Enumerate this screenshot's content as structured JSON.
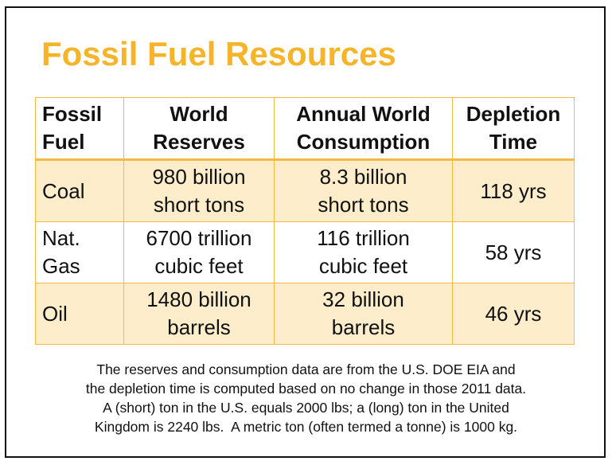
{
  "title": "Fossil Fuel Resources",
  "table": {
    "headers": [
      [
        "Fossil",
        "Fuel"
      ],
      [
        "World",
        "Reserves"
      ],
      [
        "Annual World",
        "Consumption"
      ],
      [
        "Depletion",
        "Time"
      ]
    ],
    "rows": [
      {
        "fuel": [
          "Coal"
        ],
        "reserves": [
          "980 billion",
          "short tons"
        ],
        "consumption": [
          "8.3 billion",
          "short tons"
        ],
        "depletion": "118 yrs"
      },
      {
        "fuel": [
          "Nat.",
          "Gas"
        ],
        "reserves": [
          "6700 trillion",
          "cubic feet"
        ],
        "consumption": [
          "116 trillion",
          "cubic feet"
        ],
        "depletion": "58 yrs"
      },
      {
        "fuel": [
          "Oil"
        ],
        "reserves": [
          "1480 billion",
          "barrels"
        ],
        "consumption": [
          "32 billion",
          "barrels"
        ],
        "depletion": "46 yrs"
      }
    ]
  },
  "note": [
    "The reserves and consumption data are from the U.S. DOE EIA and",
    "the depletion time is computed based on no change in those 2011 data.",
    "A (short) ton in the U.S. equals 2000 lbs; a (long) ton in the United",
    "Kingdom is 2240 lbs.  A metric ton (often termed a tonne) is 1000 kg."
  ],
  "colors": {
    "title": "#F5B42A",
    "border": "#F5B942",
    "shade": "#FDEDCB"
  }
}
